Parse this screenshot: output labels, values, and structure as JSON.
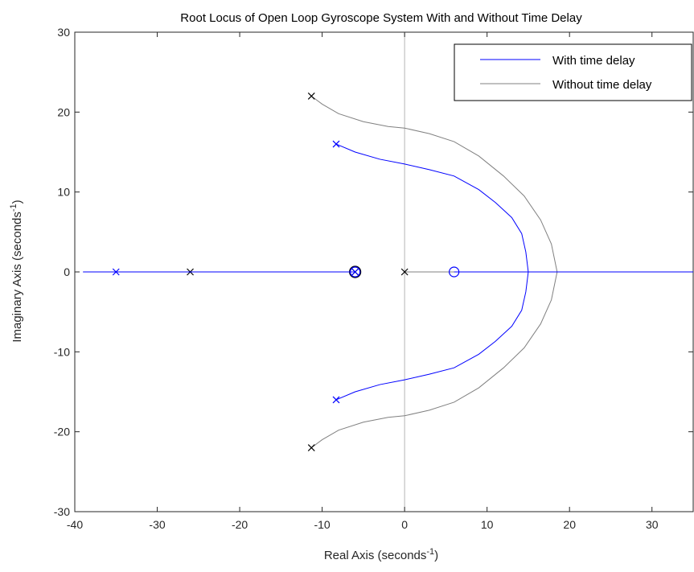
{
  "chart_data": {
    "type": "line",
    "title": "Root Locus of Open Loop Gyroscope System With and Without Time Delay",
    "xlabel": "Real Axis (seconds",
    "xlabel_sup": "-1",
    "xlabel_end": ")",
    "ylabel": "Imaginary Axis (seconds",
    "ylabel_sup": "-1",
    "ylabel_end": ")",
    "xlim": [
      -40,
      35
    ],
    "ylim": [
      -30,
      30
    ],
    "xticks": [
      -40,
      -30,
      -20,
      -10,
      0,
      10,
      20,
      30
    ],
    "yticks": [
      -30,
      -20,
      -10,
      0,
      10,
      20,
      30
    ],
    "xtick_labels": [
      "-40",
      "-30",
      "-20",
      "-10",
      "0",
      "10",
      "20",
      "30"
    ],
    "ytick_labels": [
      "-30",
      "-20",
      "-10",
      "0",
      "10",
      "20",
      "30"
    ],
    "grid": false,
    "legend_position": "top-right",
    "series": [
      {
        "name": "With time delay",
        "color": "#0000ff",
        "branch": [
          [
            -8.3,
            16
          ],
          [
            -6,
            15
          ],
          [
            -3,
            14.1
          ],
          [
            0,
            13.5
          ],
          [
            3,
            12.8
          ],
          [
            6,
            12
          ],
          [
            9,
            10.3
          ],
          [
            11,
            8.7
          ],
          [
            13,
            6.8
          ],
          [
            14.2,
            4.8
          ],
          [
            14.7,
            2.5
          ],
          [
            15,
            0
          ]
        ],
        "real_axis": [
          [
            -39,
            0
          ],
          [
            -6,
            0
          ],
          [
            6,
            0
          ],
          [
            35,
            0
          ]
        ],
        "poles": [
          [
            -35,
            0
          ],
          [
            -8.3,
            16
          ],
          [
            -8.3,
            -16
          ],
          [
            -6,
            0
          ]
        ],
        "zeros": [
          [
            -6,
            0
          ],
          [
            6,
            0
          ]
        ]
      },
      {
        "name": "Without time delay",
        "color": "#808080",
        "branch": [
          [
            -11.3,
            22
          ],
          [
            -10,
            21
          ],
          [
            -8,
            19.8
          ],
          [
            -5,
            18.8
          ],
          [
            -2,
            18.2
          ],
          [
            0,
            18
          ],
          [
            3,
            17.3
          ],
          [
            6,
            16.3
          ],
          [
            9,
            14.5
          ],
          [
            12,
            12
          ],
          [
            14.5,
            9.5
          ],
          [
            16.5,
            6.5
          ],
          [
            17.8,
            3.5
          ],
          [
            18.5,
            0
          ]
        ],
        "real_axis": [
          [
            -39,
            0
          ],
          [
            -6,
            0
          ],
          [
            0,
            0
          ],
          [
            35,
            0
          ]
        ],
        "poles": [
          [
            -26,
            0
          ],
          [
            -11.3,
            22
          ],
          [
            -11.3,
            -22
          ],
          [
            0,
            0
          ],
          [
            -6,
            0
          ]
        ],
        "zeros": [
          [
            -6,
            0
          ]
        ]
      }
    ]
  }
}
